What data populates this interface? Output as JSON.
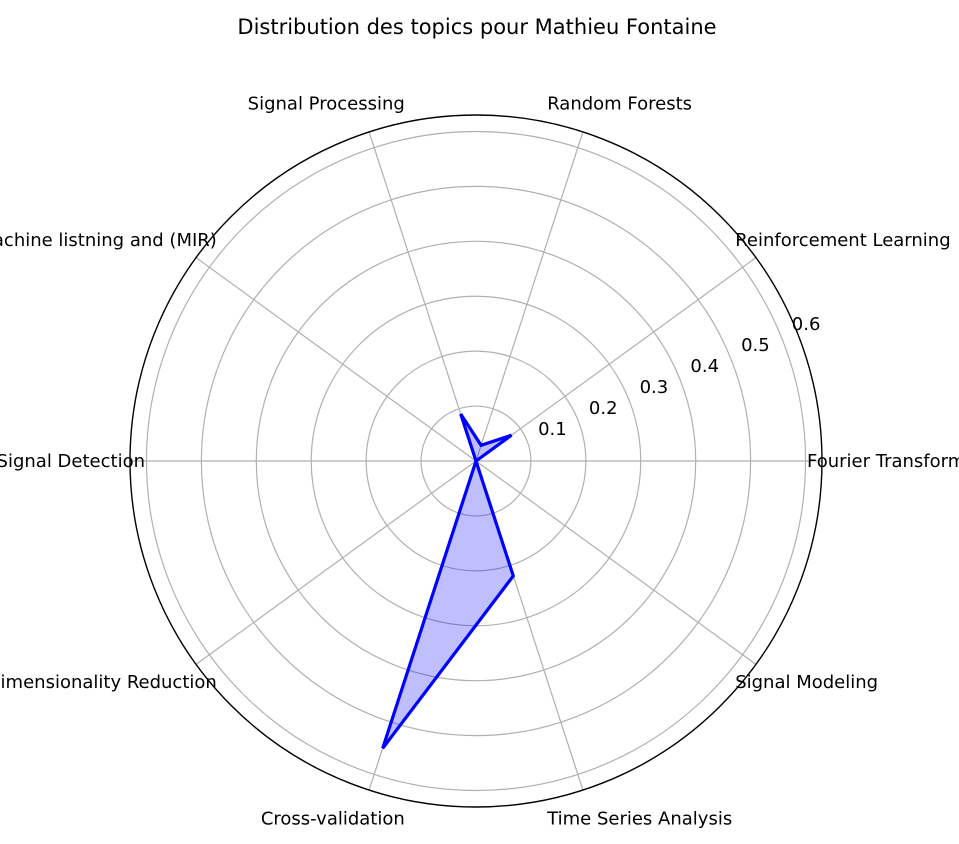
{
  "chart_data": {
    "type": "radar",
    "title": "Distribution des topics pour Mathieu Fontaine",
    "categories": [
      "Fourier Transform",
      "Reinforcement Learning",
      "Random Forests",
      "Signal Processing",
      "Machine listning and (MIR)",
      "Signal Detection",
      "Dimensionality Reduction",
      "Cross-validation",
      "Time Series Analysis",
      "Signal Modeling"
    ],
    "series": [
      {
        "values": [
          0.0,
          0.08,
          0.03,
          0.09,
          0.0,
          0.0,
          0.0,
          0.55,
          0.22,
          0.0
        ],
        "color": "#0000ff",
        "fill": "#0000ff",
        "fill_opacity": 0.25
      }
    ],
    "rticks": [
      0.1,
      0.2,
      0.3,
      0.4,
      0.5,
      0.6
    ],
    "rtick_labels": [
      "0.1",
      "0.2",
      "0.3",
      "0.4",
      "0.5",
      "0.6"
    ],
    "rlim": [
      0,
      0.63
    ],
    "grid": true
  }
}
